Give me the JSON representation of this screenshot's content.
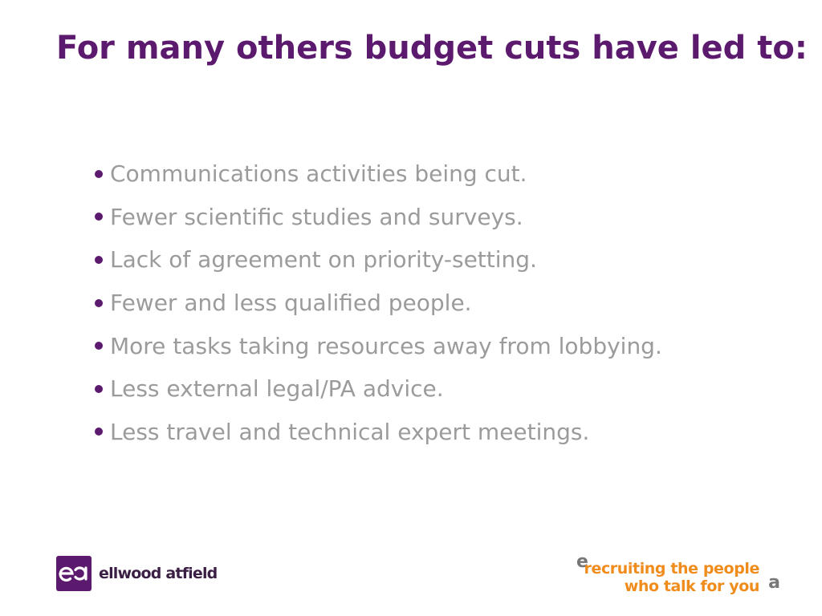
{
  "slide": {
    "title": "For many others budget cuts have led to:",
    "bullets": [
      "Communications activities being cut.",
      "Fewer scientific studies and surveys.",
      "Lack of agreement on priority-setting.",
      "Fewer and less qualified people.",
      "More tasks taking resources away from lobbying.",
      "Less external legal/PA advice.",
      "Less travel and technical expert meetings."
    ]
  },
  "footer": {
    "logo_text": "ellwood atfield",
    "tagline_line1": "recruiting the people",
    "tagline_line2": "who talk for you"
  },
  "colors": {
    "title": "#5c1a6e",
    "bullet_text": "#9b9b9b",
    "bullet_marker": "#5c1a6e",
    "tagline": "#f08c1c",
    "tagline_accent": "#777777"
  }
}
